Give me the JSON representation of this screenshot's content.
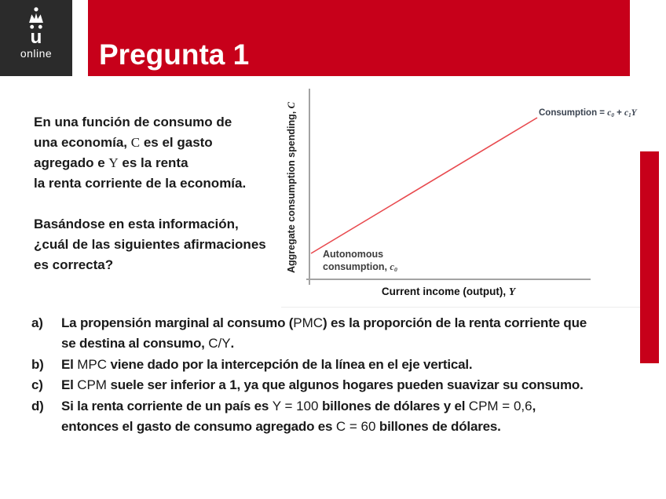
{
  "logo": {
    "mark": "crowned-u-mark",
    "mark_letter": "u",
    "label": "online",
    "bg_color": "#2B2B2B"
  },
  "header": {
    "title": "Pregunta 1",
    "bg_color": "#C7001A",
    "text_color": "#FFFFFF"
  },
  "question": {
    "p1": [
      [
        {
          "t": "En una función de consumo de"
        }
      ],
      [
        {
          "t": "una economía, "
        },
        {
          "t": "C",
          "v": true
        },
        {
          "t": " es el gasto"
        }
      ],
      [
        {
          "t": "agregado e "
        },
        {
          "t": "Y",
          "v": true
        },
        {
          "t": " es la renta"
        }
      ],
      [
        {
          "t": "la renta corriente de la economía."
        }
      ]
    ],
    "p2": [
      [
        {
          "t": "Basándose en esta información,"
        }
      ],
      [
        {
          "t": "¿cuál de las siguientes afirmaciones"
        }
      ],
      [
        {
          "t": "es correcta?"
        }
      ]
    ]
  },
  "chart": {
    "ylabel_rich": [
      {
        "t": "Aggregate consumption spending, "
      },
      {
        "t": "C",
        "v": true
      }
    ],
    "xlabel_rich": [
      {
        "t": "Current income (output), "
      },
      {
        "t": "Y",
        "v": true
      }
    ],
    "equation_rich": [
      {
        "t": "Consumption = "
      },
      {
        "t": "c",
        "v": true
      },
      {
        "t": "0",
        "v": true,
        "s": true
      },
      {
        "t": " + "
      },
      {
        "t": "c",
        "v": true
      },
      {
        "t": "1",
        "v": true,
        "s": true
      },
      {
        "t": "Y",
        "v": true
      }
    ],
    "intercept_line1": [
      {
        "t": "Autonomous"
      }
    ],
    "intercept_line2": [
      {
        "t": "consumption, "
      },
      {
        "t": "c",
        "v": true
      },
      {
        "t": "0",
        "v": true,
        "s": true
      }
    ],
    "line_color": "#E8494E",
    "axis_color": "#A3A3A3",
    "equation_color": "#3A4350"
  },
  "chart_data": {
    "type": "line",
    "title": "",
    "xlabel": "Current income (output), Y",
    "ylabel": "Aggregate consumption spending, C",
    "x_ticks": [],
    "y_ticks": [],
    "grid": false,
    "legend": false,
    "series": [
      {
        "name": "Consumption = c0 + c1Y",
        "color": "#E8494E",
        "x_rel": [
          0,
          1
        ],
        "y_rel": [
          0.22,
          0.97
        ],
        "description": "Straight upward-sloping consumption function: positive vertical intercept c0 (autonomous consumption) with constant slope c1"
      }
    ],
    "annotations": [
      {
        "text": "Autonomous consumption, c0",
        "position": "at vertical intercept, lower left"
      },
      {
        "text": "Consumption = c0 + c1Y",
        "position": "upper right at end of line"
      }
    ]
  },
  "options": [
    {
      "marker": "a)",
      "lines": [
        [
          {
            "t": "La propensión marginal al consumo ("
          },
          {
            "t": "PMC",
            "l": true
          },
          {
            "t": ") es la proporción de la renta corriente que"
          }
        ],
        [
          {
            "t": "se destina al consumo, "
          },
          {
            "t": "C/Y",
            "l": true
          },
          {
            "t": "."
          }
        ]
      ]
    },
    {
      "marker": "b)",
      "lines": [
        [
          {
            "t": "El "
          },
          {
            "t": "MPC",
            "l": true
          },
          {
            "t": " viene dado por la intercepción de la línea en el eje vertical."
          }
        ]
      ]
    },
    {
      "marker": "c)",
      "lines": [
        [
          {
            "t": "El "
          },
          {
            "t": "CPM",
            "l": true
          },
          {
            "t": " suele ser inferior a 1, ya que algunos hogares pueden suavizar su consumo."
          }
        ]
      ]
    },
    {
      "marker": "d)",
      "lines": [
        [
          {
            "t": "Si la renta corriente de un país es "
          },
          {
            "t": "Y = 100",
            "l": true
          },
          {
            "t": " billones de dólares y el "
          },
          {
            "t": "CPM = 0,6",
            "l": true
          },
          {
            "t": ","
          }
        ],
        [
          {
            "t": "entonces el gasto de consumo agregado es "
          },
          {
            "t": "C = 60",
            "l": true
          },
          {
            "t": " billones de dólares."
          }
        ]
      ]
    }
  ],
  "accent_bar": {
    "color": "#C7001A"
  }
}
